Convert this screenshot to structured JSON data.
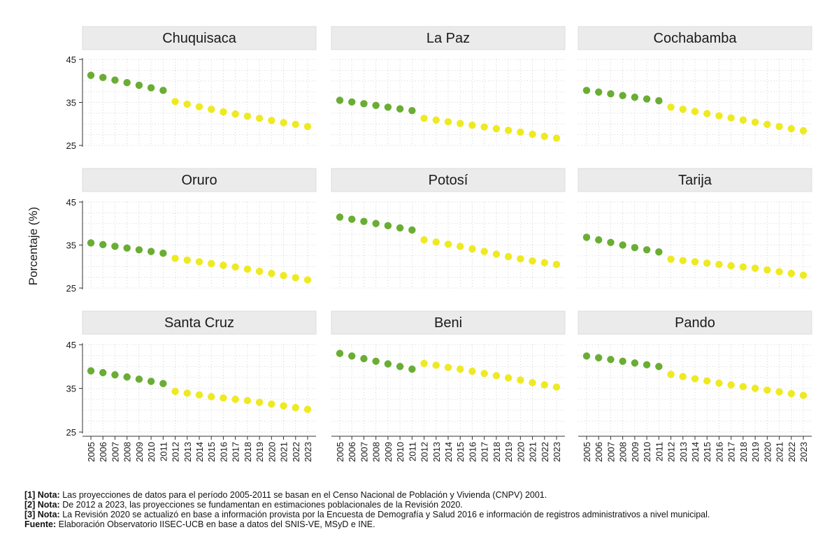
{
  "chart_data": {
    "type": "scatter",
    "ylabel": "Porcentaje (%)",
    "ylim": [
      25,
      45
    ],
    "yticks": [
      25,
      35,
      45
    ],
    "x": [
      2005,
      2006,
      2007,
      2008,
      2009,
      2010,
      2011,
      2012,
      2013,
      2014,
      2015,
      2016,
      2017,
      2018,
      2019,
      2020,
      2021,
      2022,
      2023
    ],
    "x_labels": [
      "2005",
      "2006",
      "2007",
      "2008",
      "2009",
      "2010",
      "2011",
      "2012",
      "2013",
      "2014",
      "2015",
      "2016",
      "2017",
      "2018",
      "2019",
      "2020",
      "2021",
      "2022",
      "2023"
    ],
    "series_colors": {
      "CNPV 2001": "#6aad34",
      "Revisión 2020": "#eeea22"
    },
    "grid": true,
    "panels": [
      {
        "name": "Chuquisaca",
        "values": [
          41.3,
          40.8,
          40.2,
          39.6,
          39.0,
          38.4,
          37.8,
          35.2,
          34.6,
          34.0,
          33.4,
          32.8,
          32.3,
          31.8,
          31.3,
          30.8,
          30.3,
          29.9,
          29.4
        ]
      },
      {
        "name": "La Paz",
        "values": [
          35.5,
          35.1,
          34.7,
          34.3,
          33.9,
          33.5,
          33.1,
          31.3,
          30.9,
          30.5,
          30.1,
          29.7,
          29.3,
          28.9,
          28.5,
          28.1,
          27.6,
          27.1,
          26.7
        ]
      },
      {
        "name": "Cochabamba",
        "values": [
          37.8,
          37.4,
          37.0,
          36.6,
          36.2,
          35.8,
          35.4,
          33.9,
          33.4,
          32.9,
          32.4,
          31.9,
          31.4,
          30.9,
          30.4,
          29.9,
          29.4,
          28.9,
          28.4
        ]
      },
      {
        "name": "Oruro",
        "values": [
          35.5,
          35.1,
          34.7,
          34.3,
          33.9,
          33.5,
          33.1,
          31.9,
          31.5,
          31.1,
          30.7,
          30.3,
          29.9,
          29.4,
          28.9,
          28.4,
          27.9,
          27.4,
          26.9
        ]
      },
      {
        "name": "Potosí",
        "values": [
          41.5,
          41.0,
          40.5,
          40.0,
          39.5,
          39.0,
          38.5,
          36.2,
          35.7,
          35.2,
          34.7,
          34.1,
          33.5,
          32.9,
          32.3,
          31.8,
          31.3,
          30.9,
          30.5
        ]
      },
      {
        "name": "Tarija",
        "values": [
          36.8,
          36.2,
          35.6,
          35.0,
          34.4,
          33.9,
          33.4,
          31.7,
          31.4,
          31.1,
          30.8,
          30.5,
          30.2,
          29.9,
          29.6,
          29.2,
          28.8,
          28.4,
          28.0
        ]
      },
      {
        "name": "Santa Cruz",
        "values": [
          39.0,
          38.6,
          38.1,
          37.6,
          37.1,
          36.6,
          36.1,
          34.3,
          33.9,
          33.5,
          33.1,
          32.8,
          32.5,
          32.2,
          31.8,
          31.4,
          31.0,
          30.6,
          30.2
        ]
      },
      {
        "name": "Beni",
        "values": [
          43.0,
          42.4,
          41.8,
          41.2,
          40.6,
          40.0,
          39.4,
          40.7,
          40.3,
          39.8,
          39.4,
          38.9,
          38.4,
          37.9,
          37.4,
          36.9,
          36.3,
          35.8,
          35.3
        ]
      },
      {
        "name": "Pando",
        "values": [
          42.4,
          42.0,
          41.6,
          41.2,
          40.8,
          40.4,
          40.0,
          38.2,
          37.7,
          37.2,
          36.7,
          36.2,
          35.8,
          35.4,
          35.0,
          34.6,
          34.2,
          33.8,
          33.4
        ]
      }
    ]
  },
  "notes": [
    {
      "label": "[1] Nota:",
      "text": "Las proyecciones de datos para el período 2005-2011 se basan en el Censo Nacional de Población y Vivienda (CNPV) 2001."
    },
    {
      "label": "[2] Nota:",
      "text": "De 2012 a 2023, las proyecciones se fundamentan en estimaciones poblacionales de la Revisión 2020."
    },
    {
      "label": "[3] Nota:",
      "text": "La Revisión 2020 se actualizó en base a información provista por la Encuesta de Demografía y Salud 2016 e información de registros administrativos a nivel municipal."
    },
    {
      "label": "Fuente:",
      "text": "Elaboración Observatorio IISEC-UCB en base a datos del SNIS-VE, MSyD e INE."
    }
  ]
}
